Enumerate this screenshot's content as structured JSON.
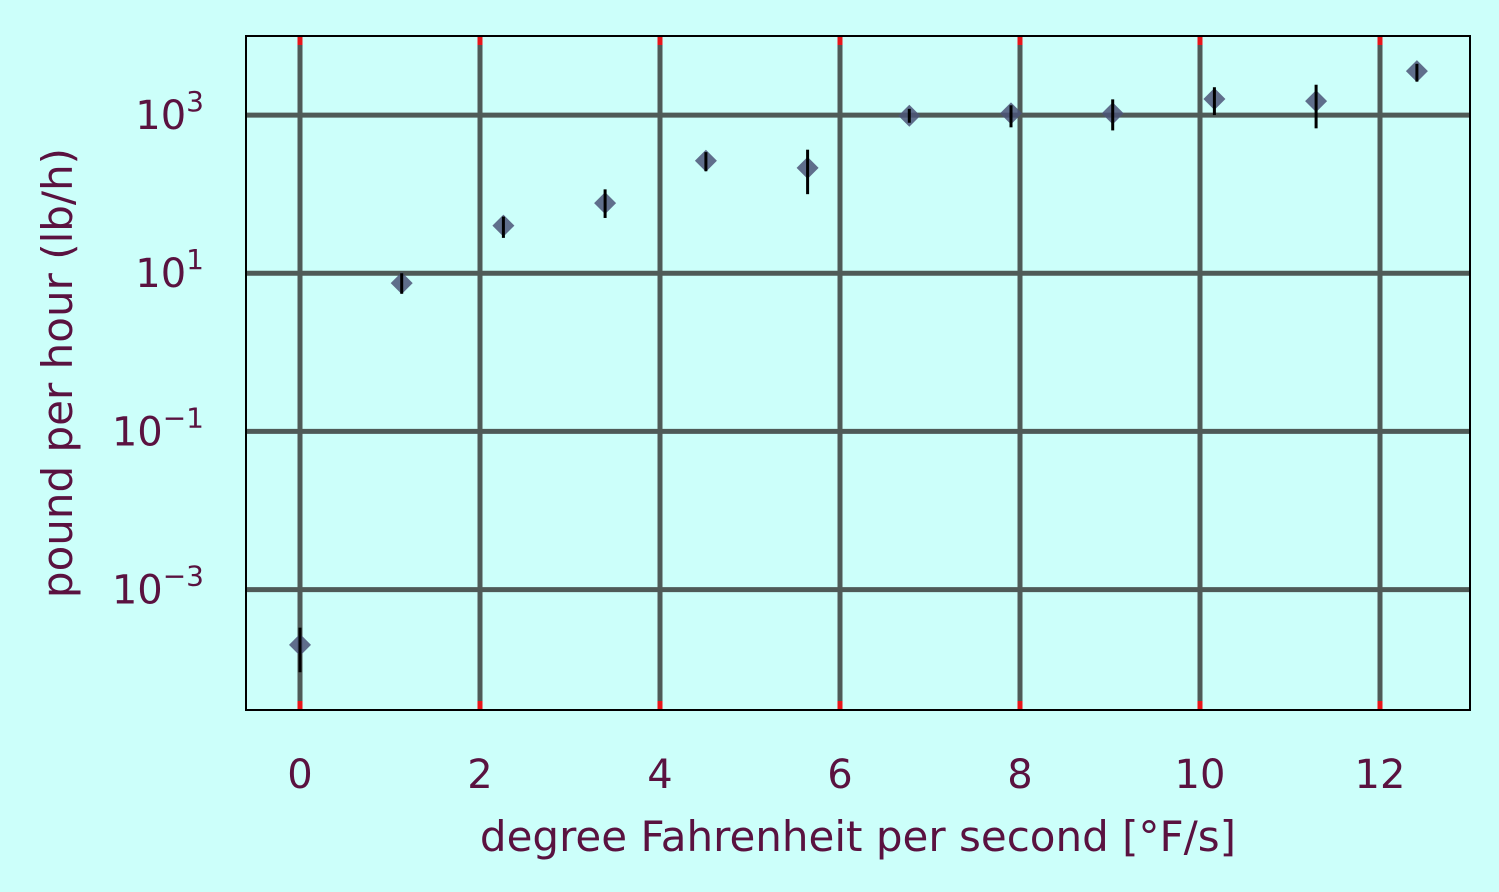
{
  "chart_data": {
    "type": "scatter",
    "title": "",
    "xlabel": "degree Fahrenheit per second [°F/s]",
    "ylabel": "pound per hour (lb/h)",
    "xlim": [
      -0.6,
      13.0
    ],
    "ylim": [
      3e-05,
      10000
    ],
    "yscale": "log",
    "grid": true,
    "xticks": [
      0,
      2,
      4,
      6,
      8,
      10,
      12
    ],
    "xtick_labels": [
      "0",
      "2",
      "4",
      "6",
      "8",
      "10",
      "12"
    ],
    "yticks": [
      0.001,
      0.1,
      10,
      1000
    ],
    "ytick_labels": [
      {
        "base": "10",
        "exp": "−3"
      },
      {
        "base": "10",
        "exp": "−1"
      },
      {
        "base": "10",
        "exp": "1"
      },
      {
        "base": "10",
        "exp": "3"
      }
    ],
    "series": [
      {
        "marker": "diamond",
        "points": [
          {
            "x": 0.0,
            "y": 0.0002,
            "ylow": 9e-05,
            "yhigh": 0.00033
          },
          {
            "x": 1.13,
            "y": 7.5,
            "ylow": 5.5,
            "yhigh": 10.0
          },
          {
            "x": 2.26,
            "y": 40,
            "ylow": 28,
            "yhigh": 52
          },
          {
            "x": 3.39,
            "y": 77,
            "ylow": 50,
            "yhigh": 115
          },
          {
            "x": 4.51,
            "y": 265,
            "ylow": 195,
            "yhigh": 340
          },
          {
            "x": 5.64,
            "y": 215,
            "ylow": 100,
            "yhigh": 365
          },
          {
            "x": 6.77,
            "y": 980,
            "ylow": 800,
            "yhigh": 1200
          },
          {
            "x": 7.9,
            "y": 1050,
            "ylow": 700,
            "yhigh": 1330
          },
          {
            "x": 9.03,
            "y": 1050,
            "ylow": 640,
            "yhigh": 1580
          },
          {
            "x": 10.16,
            "y": 1600,
            "ylow": 1000,
            "yhigh": 2250
          },
          {
            "x": 11.29,
            "y": 1500,
            "ylow": 680,
            "yhigh": 2420
          },
          {
            "x": 12.41,
            "y": 3600,
            "ylow": 2650,
            "yhigh": 4450
          }
        ]
      }
    ],
    "colors": {
      "background": "#ccfffa",
      "plot_background": "#ccfffa",
      "grid": "#4f5a57",
      "tick_marks": "#e8141a",
      "text": "#5a1240",
      "marker": "#4b5577",
      "errorbar": "#000000",
      "frame": "#000000"
    }
  }
}
